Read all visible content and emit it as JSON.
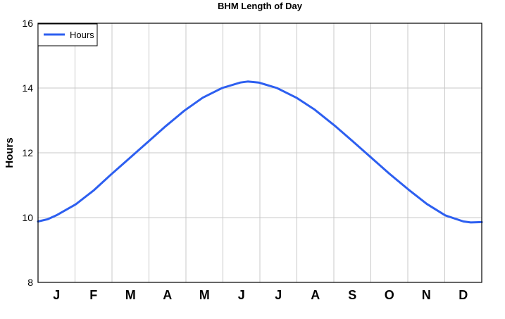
{
  "chart_data": {
    "type": "line",
    "title": "BHM Length of Day",
    "xlabel": "",
    "ylabel": "Hours",
    "ylim": [
      8,
      16
    ],
    "yticks": [
      "8",
      "10",
      "12",
      "14",
      "16"
    ],
    "grid": true,
    "legend": {
      "position": "top-left",
      "entries": [
        "Hours"
      ]
    },
    "x_tick_labels": [
      "J",
      "F",
      "M",
      "A",
      "M",
      "J",
      "J",
      "A",
      "S",
      "O",
      "N",
      "D"
    ],
    "series": [
      {
        "name": "Hours",
        "color": "#2d5ff0",
        "x": [
          0,
          8,
          15,
          31,
          46,
          59,
          74,
          90,
          105,
          120,
          135,
          151,
          166,
          172,
          181,
          196,
          212,
          227,
          243,
          258,
          273,
          288,
          304,
          319,
          334,
          349,
          355,
          364
        ],
        "values": [
          9.88,
          9.95,
          10.07,
          10.41,
          10.85,
          11.3,
          11.8,
          12.33,
          12.83,
          13.3,
          13.7,
          14.0,
          14.17,
          14.2,
          14.17,
          14.0,
          13.7,
          13.33,
          12.85,
          12.36,
          11.86,
          11.36,
          10.86,
          10.42,
          10.07,
          9.88,
          9.85,
          9.86
        ]
      }
    ]
  }
}
